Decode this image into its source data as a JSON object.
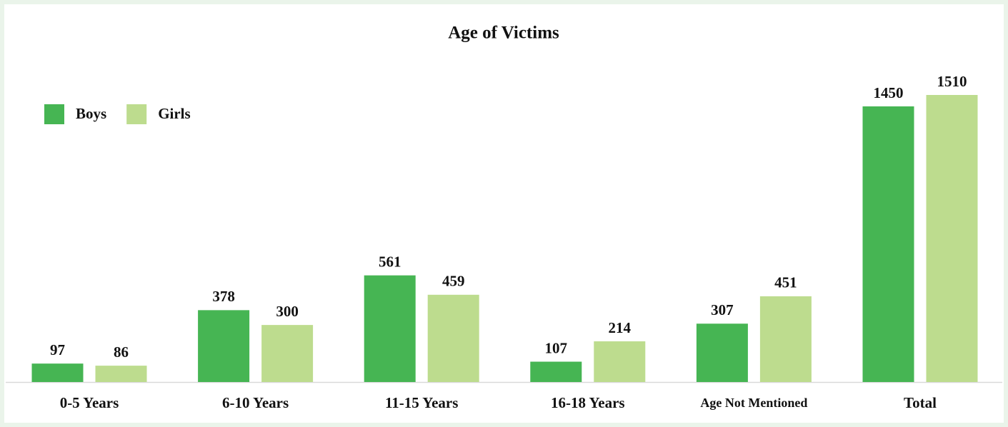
{
  "chart_data": {
    "type": "bar",
    "title": "Age of Victims",
    "categories": [
      "0-5 Years",
      "6-10 Years",
      "11-15 Years",
      "16-18 Years",
      "Age Not Mentioned",
      "Total"
    ],
    "series": [
      {
        "name": "Boys",
        "color": "#46b553",
        "values": [
          97,
          378,
          561,
          107,
          307,
          1450
        ]
      },
      {
        "name": "Girls",
        "color": "#bddc8e",
        "values": [
          86,
          300,
          459,
          214,
          451,
          1510
        ]
      }
    ],
    "legend": "top-left"
  }
}
